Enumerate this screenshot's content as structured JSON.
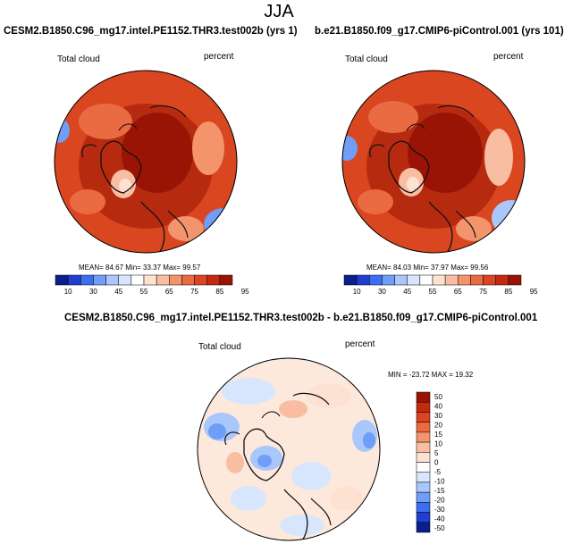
{
  "page_title": "JJA",
  "panels": [
    {
      "case_title": "CESM2.B1850.C96_mg17.intel.PE1152.THR3.test002b (yrs 1)",
      "variable": "Total cloud",
      "units": "percent",
      "stats": "MEAN=  84.67  Min=  33.37  Max=  99.57"
    },
    {
      "case_title": "b.e21.B1850.f09_g17.CMIP6-piControl.001 (yrs 101)",
      "variable": "Total cloud",
      "units": "percent",
      "stats": "MEAN=  84.03  Min=  37.97  Max=  99.56"
    }
  ],
  "abs_colorbar": {
    "labels": [
      "10",
      "30",
      "45",
      "55",
      "65",
      "75",
      "85",
      "95"
    ],
    "colors": [
      "#0a1e8c",
      "#1f3fd1",
      "#3b6ff0",
      "#6f9df7",
      "#a9c7fb",
      "#d8e6fd",
      "#ffffff",
      "#fde2d2",
      "#f9bda2",
      "#f3946c",
      "#ea6b42",
      "#dd4423",
      "#c42a10",
      "#9a1405"
    ]
  },
  "diff": {
    "title": "CESM2.B1850.C96_mg17.intel.PE1152.THR3.test002b - b.e21.B1850.f09_g17.CMIP6-piControl.001",
    "variable": "Total cloud",
    "units": "percent",
    "stats": "MIN = -23.72 MAX =  19.32"
  },
  "diff_colorbar": {
    "labels": [
      "50",
      "40",
      "30",
      "20",
      "15",
      "10",
      "5",
      "0",
      "-5",
      "-10",
      "-15",
      "-20",
      "-30",
      "-40",
      "-50"
    ],
    "colors": [
      "#9a1405",
      "#c42a10",
      "#dd4423",
      "#ea6b42",
      "#f3946c",
      "#f9bda2",
      "#fde2d2",
      "#ffffff",
      "#d8e6fd",
      "#a9c7fb",
      "#6f9df7",
      "#3b6ff0",
      "#1f3fd1",
      "#0a1e8c"
    ]
  }
}
